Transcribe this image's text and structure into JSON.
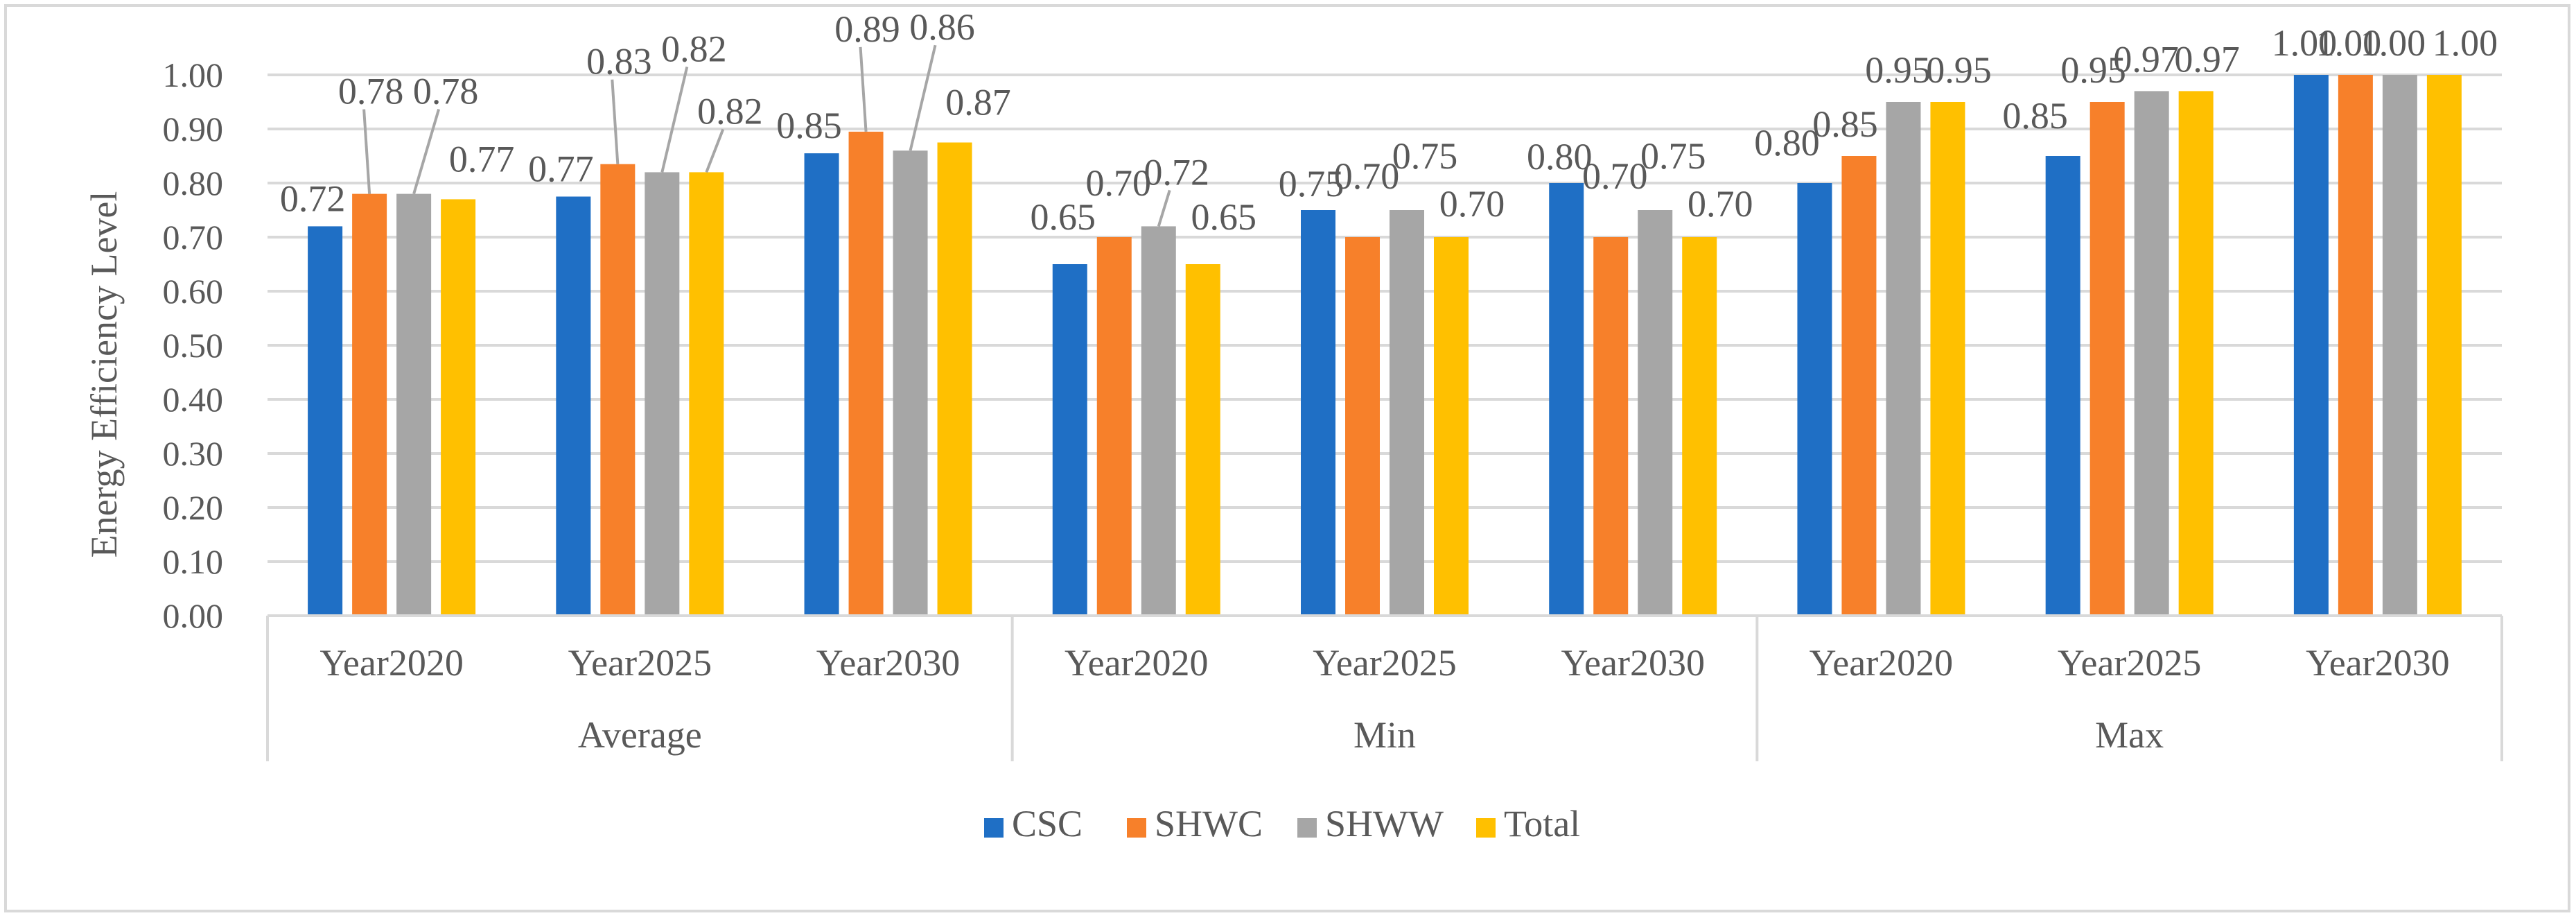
{
  "chart_data": {
    "type": "bar",
    "title": "",
    "ylabel": "Energy Efficiency Level",
    "xlabel": "",
    "ylim": [
      0,
      1.0
    ],
    "ytick_step": 0.1,
    "ytick_labels": [
      "0.00",
      "0.10",
      "0.20",
      "0.30",
      "0.40",
      "0.50",
      "0.60",
      "0.70",
      "0.80",
      "0.90",
      "1.00"
    ],
    "grid": true,
    "legend_position": "bottom",
    "groups": [
      {
        "name": "Average",
        "categories": [
          "Year2020",
          "Year2025",
          "Year2030"
        ]
      },
      {
        "name": "Min",
        "categories": [
          "Year2020",
          "Year2025",
          "Year2030"
        ]
      },
      {
        "name": "Max",
        "categories": [
          "Year2020",
          "Year2025",
          "Year2030"
        ]
      }
    ],
    "series": [
      {
        "name": "CSC",
        "color": "#1f6fc5",
        "values": [
          0.72,
          0.775,
          0.855,
          0.65,
          0.75,
          0.8,
          0.8,
          0.85,
          1.0
        ],
        "labels": [
          "0.72",
          "0.77",
          "0.85",
          "0.65",
          "0.75",
          "0.80",
          "0.80",
          "0.85",
          "1.00"
        ]
      },
      {
        "name": "SHWC",
        "color": "#f7802a",
        "values": [
          0.78,
          0.835,
          0.895,
          0.7,
          0.7,
          0.7,
          0.85,
          0.95,
          1.0
        ],
        "labels": [
          "0.78",
          "0.83",
          "0.89",
          "0.70",
          "0.70",
          "0.70",
          "0.85",
          "0.95",
          "1.00"
        ]
      },
      {
        "name": "SHWW",
        "color": "#a6a6a6",
        "values": [
          0.78,
          0.82,
          0.86,
          0.72,
          0.75,
          0.75,
          0.95,
          0.97,
          1.0
        ],
        "labels": [
          "0.78",
          "0.82",
          "0.86",
          "0.72",
          "0.75",
          "0.75",
          "0.95",
          "0.97",
          "1.00"
        ]
      },
      {
        "name": "Total",
        "color": "#ffc000",
        "values": [
          0.77,
          0.82,
          0.875,
          0.65,
          0.7,
          0.7,
          0.95,
          0.97,
          1.0
        ],
        "labels": [
          "0.77",
          "0.82",
          "0.87",
          "0.65",
          "0.70",
          "0.70",
          "0.95",
          "0.97",
          "1.00"
        ]
      }
    ]
  }
}
